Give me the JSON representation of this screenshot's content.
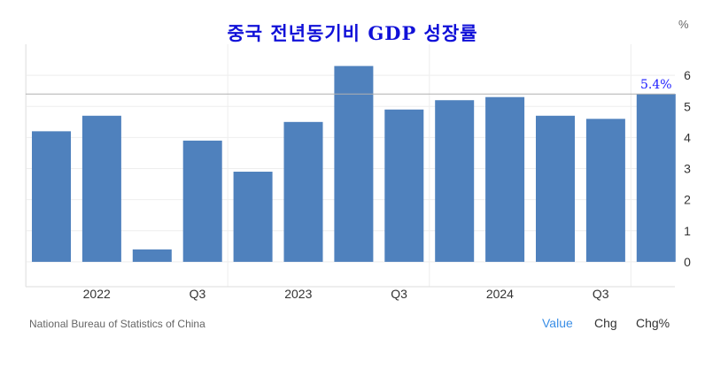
{
  "chart_data": {
    "type": "bar",
    "title": "중국 전년동기비 GDP 성장률",
    "unit_label": "%",
    "series": [
      {
        "values": [
          4.2,
          4.7,
          0.4,
          3.9,
          2.9,
          4.5,
          6.3,
          4.9,
          5.2,
          5.3,
          4.7,
          4.6,
          5.4
        ]
      }
    ],
    "x_tick_labels": [
      {
        "label": "2022",
        "bar": 1
      },
      {
        "label": "Q3",
        "bar": 3
      },
      {
        "label": "2023",
        "bar": 5
      },
      {
        "label": "Q3",
        "bar": 7
      },
      {
        "label": "2024",
        "bar": 9
      },
      {
        "label": "Q3",
        "bar": 11
      }
    ],
    "ylim": [
      -0.8,
      7.0
    ],
    "yticks": [
      0,
      1,
      2,
      3,
      4,
      5,
      6
    ],
    "grid": true,
    "last_value_label": "5.4%",
    "colors": {
      "bar": "#4f81bd",
      "title": "#1010d8",
      "last_value": "#1a1aff",
      "grid": "#eeeeee",
      "reference_line": "#b0b0b0"
    }
  },
  "footer": {
    "source": "National Bureau of Statistics of China",
    "tabs": [
      {
        "label": "Value",
        "active": true
      },
      {
        "label": "Chg",
        "active": false
      },
      {
        "label": "Chg%",
        "active": false
      }
    ]
  }
}
